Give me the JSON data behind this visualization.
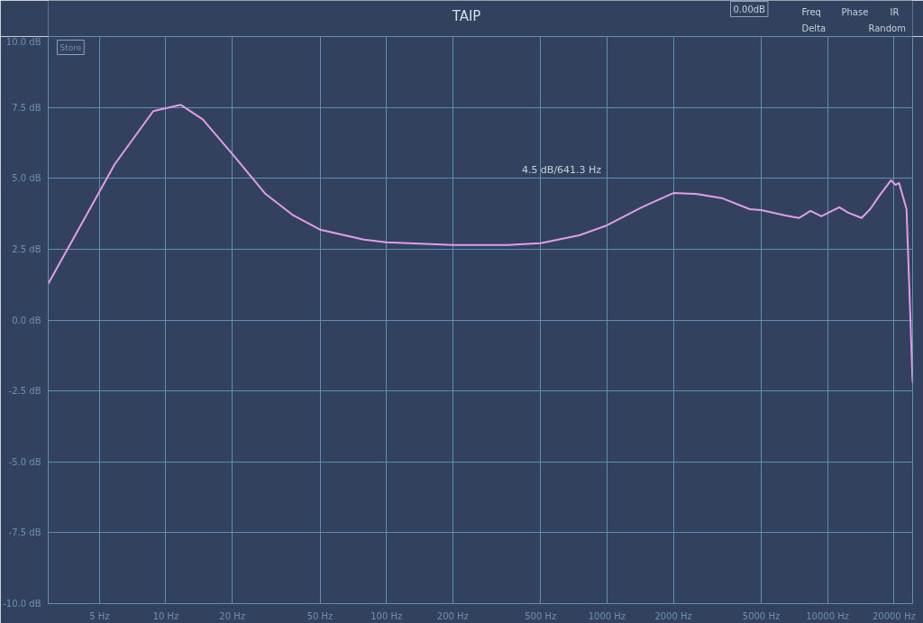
{
  "chart_data": {
    "type": "line",
    "title": "TAIP",
    "log": "x",
    "grid": true,
    "xlim": [
      2.93,
      24300
    ],
    "ylim": [
      -10,
      10
    ],
    "xticks": [
      {
        "value": 5,
        "label": "5 Hz"
      },
      {
        "value": 10,
        "label": "10 Hz"
      },
      {
        "value": 20,
        "label": "20 Hz"
      },
      {
        "value": 50,
        "label": "50 Hz"
      },
      {
        "value": 100,
        "label": "100 Hz"
      },
      {
        "value": 200,
        "label": "200 Hz"
      },
      {
        "value": 500,
        "label": "500 Hz"
      },
      {
        "value": 1000,
        "label": "1000 Hz"
      },
      {
        "value": 2000,
        "label": "2000 Hz"
      },
      {
        "value": 5000,
        "label": "5000 Hz"
      },
      {
        "value": 10000,
        "label": "10000 Hz"
      },
      {
        "value": 20000,
        "label": "20000 Hz"
      }
    ],
    "yticks": [
      {
        "value": -10,
        "label": "-10.0 dB"
      },
      {
        "value": -7.5,
        "label": "-7.5 dB"
      },
      {
        "value": -5,
        "label": "-5.0 dB"
      },
      {
        "value": -2.5,
        "label": "-2.5 dB"
      },
      {
        "value": 0,
        "label": "0.0 dB"
      },
      {
        "value": 2.5,
        "label": "2.5 dB"
      },
      {
        "value": 5,
        "label": "5.0 dB"
      },
      {
        "value": 7.5,
        "label": "7.5 dB"
      },
      {
        "value": 10,
        "label": "10.0 dB"
      }
    ],
    "annotations": [
      "4.5 dB/641.3 Hz",
      "Store",
      "0.00dB",
      "Freq",
      "Phase",
      "IR",
      "Delta",
      "Random"
    ],
    "series": [
      {
        "color": "#e39ce8",
        "x": [
          2.93,
          5.87,
          8.77,
          11.7,
          14.7,
          20.2,
          28.3,
          37.4,
          50,
          79,
          100,
          200,
          353,
          500,
          748,
          1000,
          1439,
          2000,
          2530,
          3350,
          4436,
          5000,
          6440,
          7420,
          8370,
          9360,
          11300,
          12400,
          14260,
          15600,
          17200,
          19400,
          20300,
          21100,
          21900,
          22800,
          24300
        ],
        "values": [
          1.28,
          5.5,
          7.37,
          7.59,
          7.08,
          5.82,
          4.45,
          3.72,
          3.19,
          2.84,
          2.74,
          2.65,
          2.65,
          2.71,
          2.99,
          3.34,
          3.98,
          4.48,
          4.45,
          4.29,
          3.91,
          3.88,
          3.69,
          3.6,
          3.85,
          3.66,
          3.98,
          3.79,
          3.6,
          3.91,
          4.39,
          4.93,
          4.77,
          4.83,
          4.39,
          3.91,
          -2.2
        ]
      }
    ]
  }
}
